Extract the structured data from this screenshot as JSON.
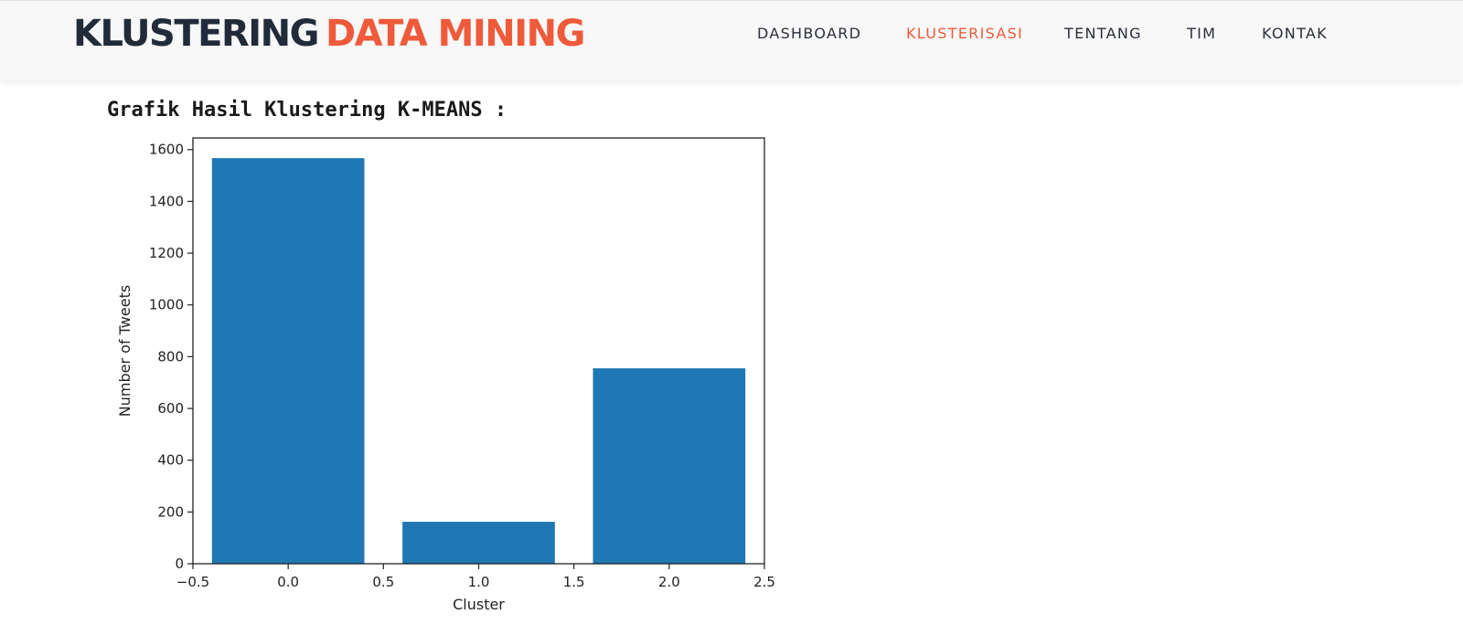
{
  "brand": {
    "part1": "KLUSTERING",
    "part2": "DATA MINING"
  },
  "nav": {
    "items": [
      {
        "label": "DASHBOARD",
        "active": false
      },
      {
        "label": "KLUSTERISASI",
        "active": true
      },
      {
        "label": "TENTANG",
        "active": false
      },
      {
        "label": "TIM",
        "active": false
      },
      {
        "label": "KONTAK",
        "active": false
      }
    ]
  },
  "section": {
    "title": "Grafik Hasil Klustering K-MEANS :"
  },
  "colors": {
    "brand_dark": "#212b3a",
    "accent": "#ee5a3a",
    "bar": "#1f77b4"
  },
  "chart_data": {
    "type": "bar",
    "title": "",
    "xlabel": "Cluster",
    "ylabel": "Number of Tweets",
    "x": [
      0,
      1,
      2
    ],
    "values": [
      1567,
      162,
      755
    ],
    "bar_width": 0.8,
    "xlim": [
      -0.5,
      2.5
    ],
    "ylim": [
      0,
      1645
    ],
    "xticks": [
      -0.5,
      0.0,
      0.5,
      1.0,
      1.5,
      2.0,
      2.5
    ],
    "xtick_labels": [
      "−0.5",
      "0.0",
      "0.5",
      "1.0",
      "1.5",
      "2.0",
      "2.5"
    ],
    "yticks": [
      0,
      200,
      400,
      600,
      800,
      1000,
      1200,
      1400,
      1600
    ],
    "ytick_labels": [
      "0",
      "200",
      "400",
      "600",
      "800",
      "1000",
      "1200",
      "1400",
      "1600"
    ],
    "grid": false,
    "legend": false
  }
}
